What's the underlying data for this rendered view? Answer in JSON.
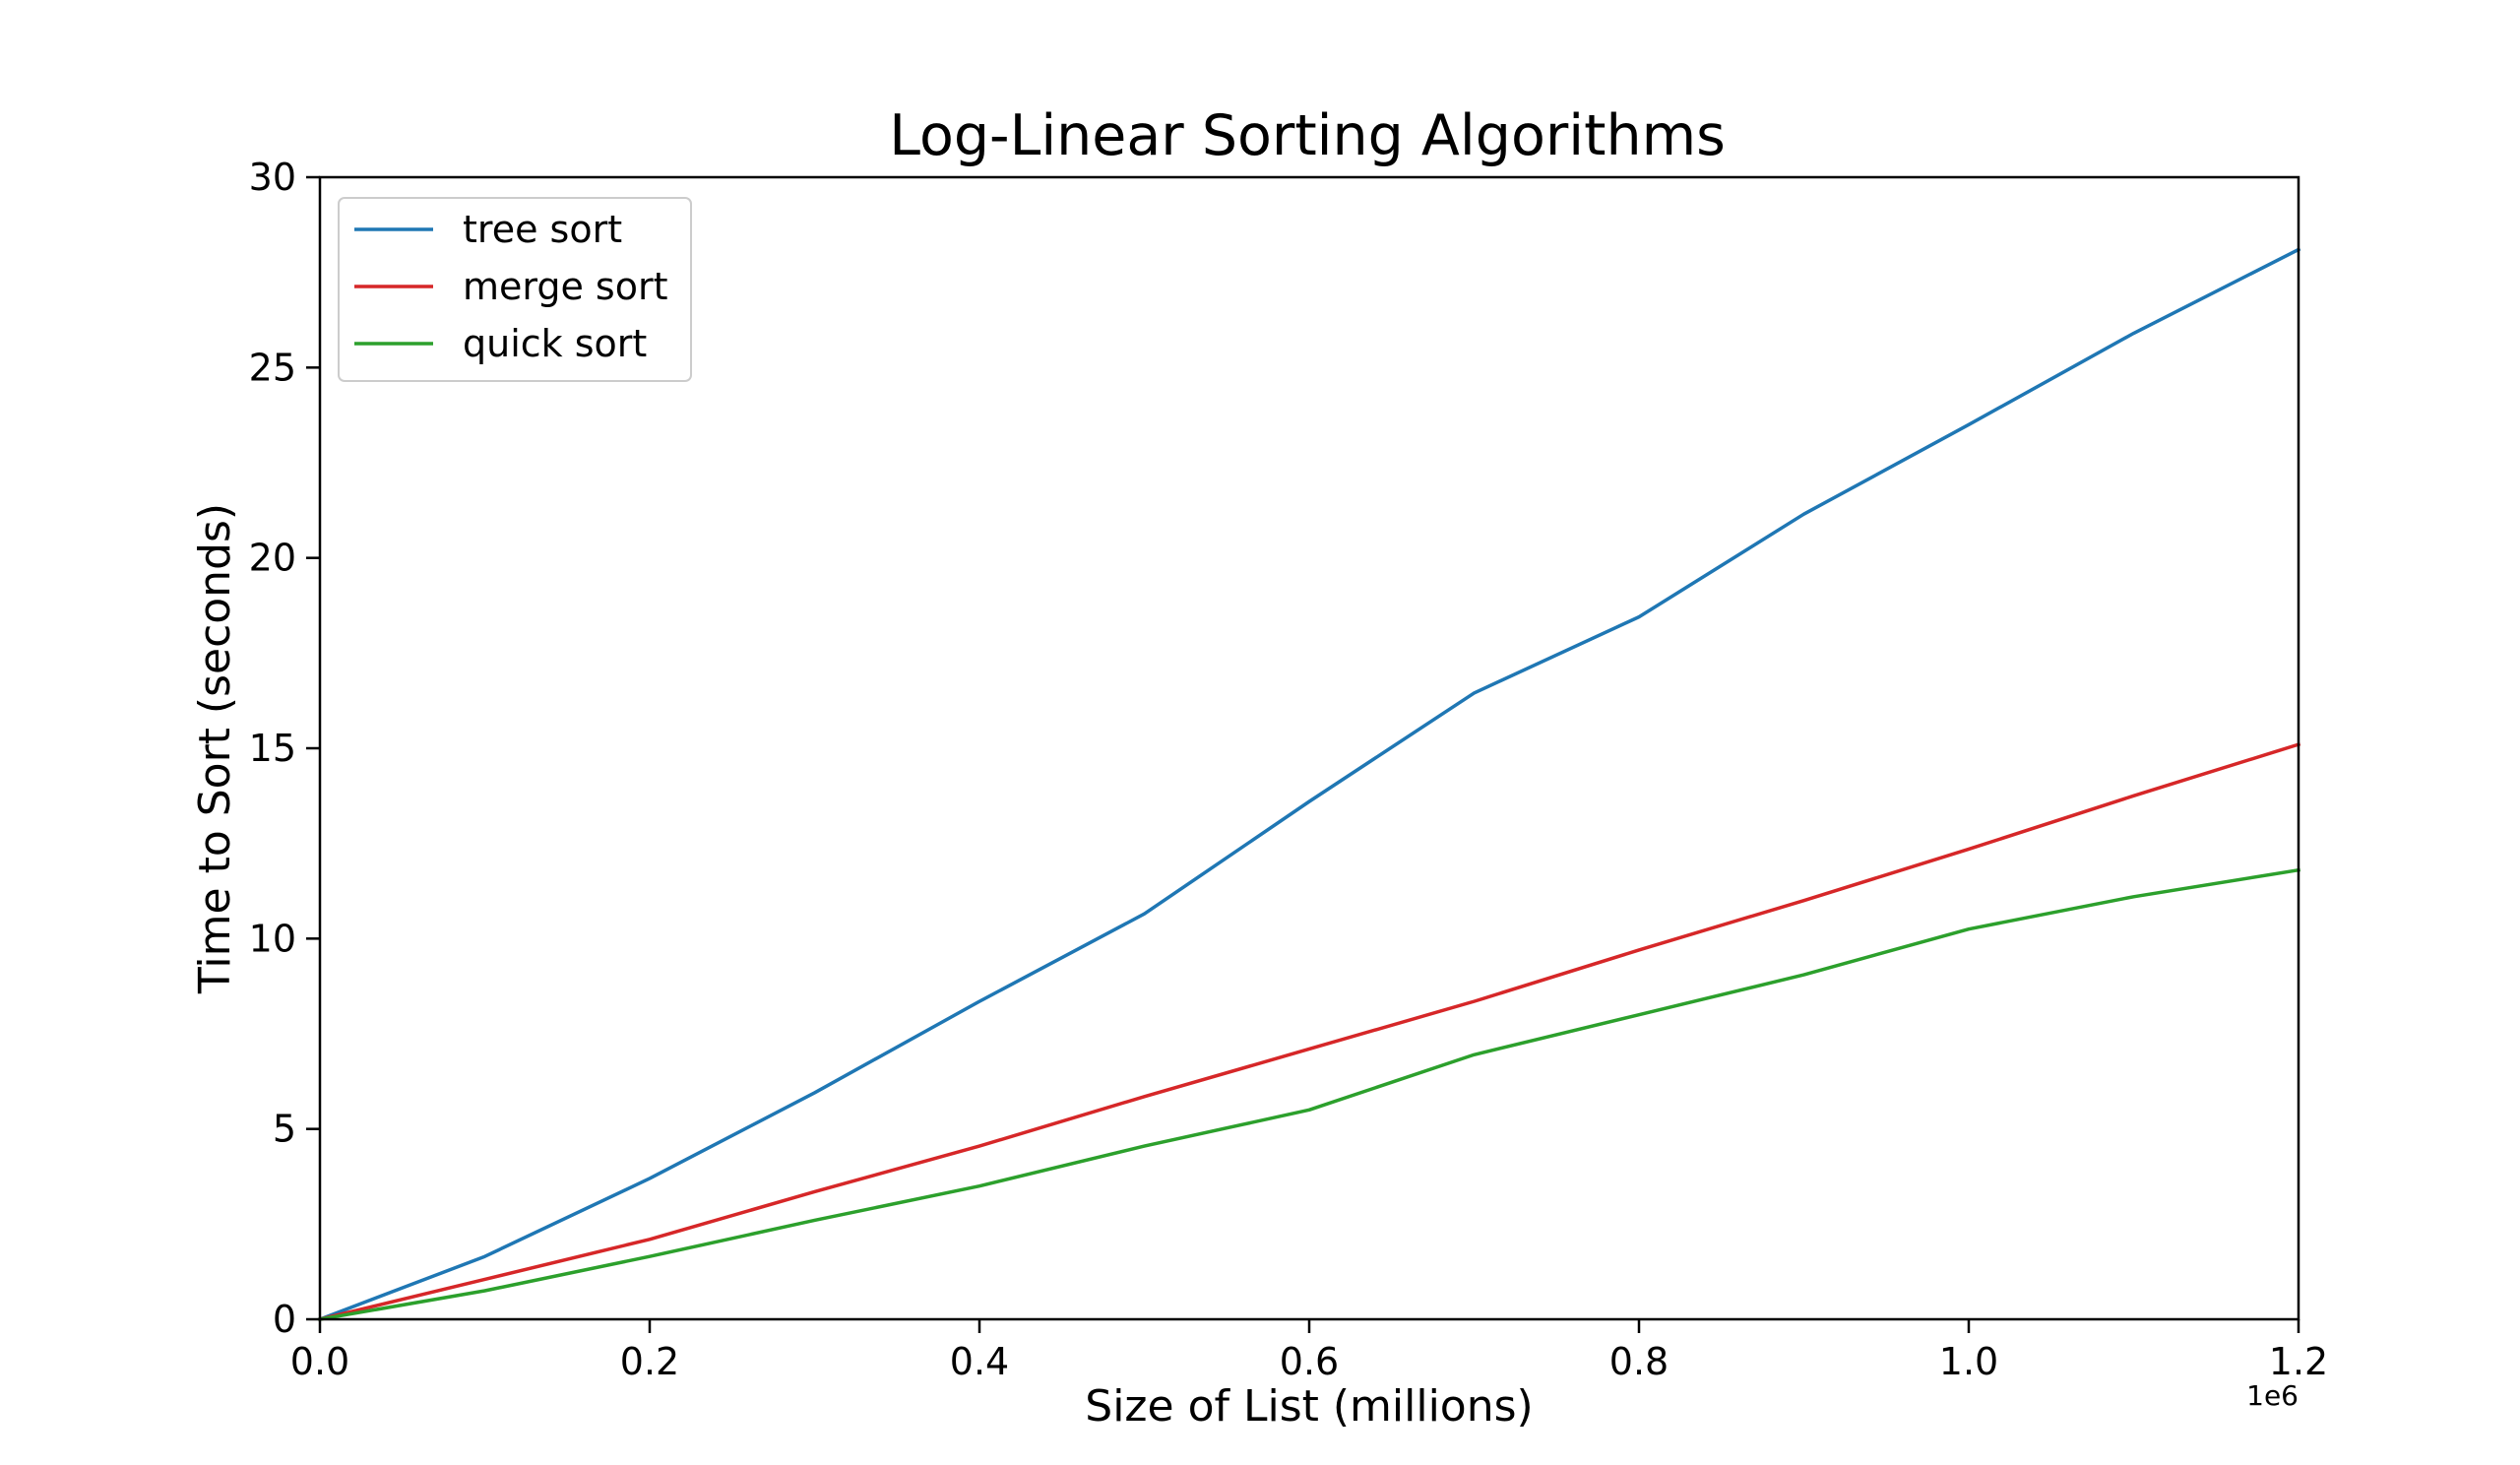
{
  "chart_data": {
    "type": "line",
    "title": "Log-Linear Sorting Algorithms",
    "xlabel": "Size of List (millions)",
    "ylabel": "Time to Sort (seconds)",
    "x_offset_label": "1e6",
    "xlim": [
      0,
      1200000
    ],
    "ylim": [
      0,
      30
    ],
    "x_ticks": [
      0,
      200000,
      400000,
      600000,
      800000,
      1000000,
      1200000
    ],
    "x_tick_labels": [
      "0.0",
      "0.2",
      "0.4",
      "0.6",
      "0.8",
      "1.0",
      "1.2"
    ],
    "y_ticks": [
      0,
      5,
      10,
      15,
      20,
      25,
      30
    ],
    "y_tick_labels": [
      "0",
      "5",
      "10",
      "15",
      "20",
      "25",
      "30"
    ],
    "grid": false,
    "legend_position": "upper-left",
    "x": [
      0,
      100000,
      200000,
      300000,
      400000,
      500000,
      600000,
      700000,
      800000,
      900000,
      1000000,
      1100000,
      1200000
    ],
    "series": [
      {
        "name": "tree sort",
        "color": "#1f77b4",
        "values": [
          0,
          1.65,
          3.7,
          5.95,
          8.35,
          10.65,
          13.6,
          16.45,
          18.45,
          21.15,
          23.5,
          25.9,
          28.1
        ]
      },
      {
        "name": "merge sort",
        "color": "#d62728",
        "values": [
          0,
          1.05,
          2.1,
          3.35,
          4.55,
          5.85,
          7.1,
          8.35,
          9.7,
          11.0,
          12.35,
          13.75,
          15.1
        ]
      },
      {
        "name": "quick sort",
        "color": "#2ca02c",
        "values": [
          0,
          0.75,
          1.65,
          2.6,
          3.5,
          4.55,
          5.5,
          6.95,
          8.0,
          9.05,
          10.25,
          11.1,
          11.8
        ]
      }
    ]
  }
}
